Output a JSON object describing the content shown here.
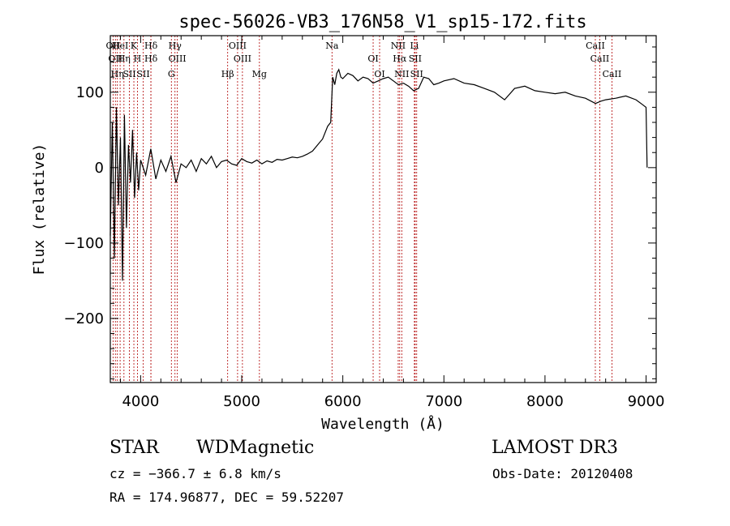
{
  "chart_data": {
    "type": "line",
    "title": "spec-56026-VB3_176N58_V1_sp15-172.fits",
    "xlabel": "Wavelength (Å)",
    "ylabel": "Flux (relative)",
    "xlim": [
      3700,
      9100
    ],
    "ylim": [
      -285,
      175
    ],
    "x_ticks": [
      4000,
      5000,
      6000,
      7000,
      8000,
      9000
    ],
    "y_ticks": [
      -200,
      -100,
      0,
      100
    ],
    "grid": false,
    "series": [
      {
        "x": [
          3700,
          3720,
          3740,
          3760,
          3780,
          3800,
          3820,
          3840,
          3860,
          3880,
          3900,
          3920,
          3940,
          3960,
          3980,
          4000,
          4050,
          4100,
          4150,
          4200,
          4250,
          4300,
          4350,
          4400,
          4450,
          4500,
          4550,
          4600,
          4650,
          4700,
          4750,
          4800,
          4850,
          4900,
          4950,
          5000,
          5050,
          5100,
          5150,
          5200,
          5250,
          5300,
          5350,
          5400,
          5450,
          5500,
          5550,
          5600,
          5650,
          5700,
          5750,
          5800,
          5850,
          5880,
          5900,
          5920,
          5940,
          5960,
          5980,
          6000,
          6050,
          6100,
          6150,
          6200,
          6250,
          6300,
          6350,
          6400,
          6450,
          6500,
          6550,
          6600,
          6650,
          6700,
          6750,
          6800,
          6850,
          6900,
          6950,
          7000,
          7100,
          7200,
          7300,
          7400,
          7500,
          7600,
          7700,
          7800,
          7900,
          8000,
          8100,
          8200,
          8300,
          8400,
          8500,
          8550,
          8600,
          8700,
          8800,
          8900,
          8950,
          9000,
          9010
        ],
        "y": [
          -90,
          60,
          -120,
          80,
          -50,
          40,
          -150,
          70,
          -80,
          30,
          -20,
          50,
          -40,
          20,
          -30,
          10,
          -10,
          25,
          -15,
          10,
          -5,
          15,
          -20,
          5,
          0,
          10,
          -5,
          12,
          5,
          15,
          0,
          8,
          10,
          5,
          3,
          12,
          8,
          6,
          10,
          5,
          9,
          7,
          11,
          10,
          12,
          14,
          13,
          15,
          18,
          22,
          30,
          38,
          55,
          60,
          120,
          110,
          125,
          130,
          120,
          118,
          125,
          122,
          115,
          120,
          118,
          112,
          115,
          118,
          120,
          115,
          110,
          112,
          108,
          102,
          105,
          120,
          118,
          110,
          112,
          115,
          118,
          112,
          110,
          105,
          100,
          90,
          105,
          108,
          102,
          100,
          98,
          100,
          95,
          92,
          85,
          88,
          90,
          92,
          95,
          90,
          85,
          80,
          0
        ]
      }
    ],
    "lines": [
      {
        "x": 3727,
        "label": "OII"
      },
      {
        "x": 3750,
        "label": "OII"
      },
      {
        "x": 3770,
        "label": "Hη"
      },
      {
        "x": 3797,
        "label": "HeI"
      },
      {
        "x": 3835,
        "label": "Hη"
      },
      {
        "x": 3889,
        "label": "SII"
      },
      {
        "x": 3933,
        "label": "K"
      },
      {
        "x": 3968,
        "label": "H"
      },
      {
        "x": 4026,
        "label": "SII"
      },
      {
        "x": 4102,
        "label": "Hδ"
      },
      {
        "x": 4102,
        "label": "Hδ"
      },
      {
        "x": 4304,
        "label": "G"
      },
      {
        "x": 4340,
        "label": "Hγ"
      },
      {
        "x": 4363,
        "label": "OIII"
      },
      {
        "x": 4861,
        "label": "Hβ"
      },
      {
        "x": 4959,
        "label": "OIII"
      },
      {
        "x": 5007,
        "label": "OIII"
      },
      {
        "x": 5175,
        "label": "Mg"
      },
      {
        "x": 5893,
        "label": "Na"
      },
      {
        "x": 6300,
        "label": "OI"
      },
      {
        "x": 6364,
        "label": "OI"
      },
      {
        "x": 6548,
        "label": "NII"
      },
      {
        "x": 6563,
        "label": "Hα"
      },
      {
        "x": 6583,
        "label": "NII"
      },
      {
        "x": 6708,
        "label": "Li"
      },
      {
        "x": 6716,
        "label": "SII"
      },
      {
        "x": 6731,
        "label": "SII"
      },
      {
        "x": 8498,
        "label": "CaII"
      },
      {
        "x": 8542,
        "label": "CaII"
      },
      {
        "x": 8662,
        "label": "CaII"
      }
    ]
  },
  "info": {
    "class_label": "STAR",
    "subclass_label": "WDMagnetic",
    "survey_label": "LAMOST DR3",
    "cz_text": "cz = −366.7 ± 6.8 km/s",
    "obs_date_text": "Obs-Date: 20120408",
    "radec_text": "RA = 174.96877, DEC =  59.52207"
  },
  "colors": {
    "axes": "#000000",
    "spectrum": "#000000",
    "line_marker": "#b00000"
  }
}
